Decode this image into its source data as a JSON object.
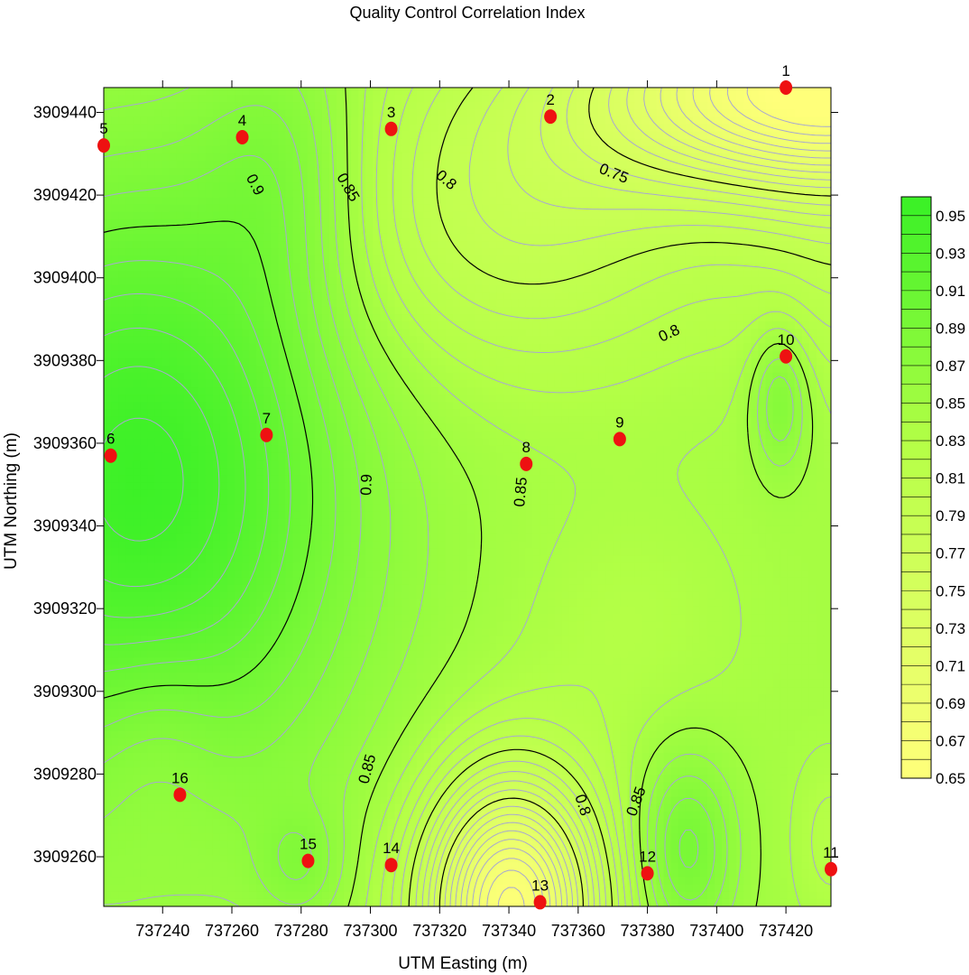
{
  "chart_data": {
    "type": "heatmap",
    "subtype": "contour",
    "title": "Quality Control Correlation Index",
    "xlabel": "UTM Easting (m)",
    "ylabel": "UTM Northing (m)",
    "xlim": [
      737223,
      737433
    ],
    "ylim": [
      3909248,
      3909446
    ],
    "x_ticks": [
      737240,
      737260,
      737280,
      737300,
      737320,
      737340,
      737360,
      737380,
      737400,
      737420
    ],
    "y_ticks": [
      3909260,
      3909280,
      3909300,
      3909320,
      3909340,
      3909360,
      3909380,
      3909400,
      3909420,
      3909440
    ],
    "colorbar": {
      "min": 0.65,
      "max": 0.96,
      "low_color": "#ffff7a",
      "mid_color": "#b4ff46",
      "high_color": "#38f026",
      "tick_labels": [
        "0.95",
        "0.93",
        "0.91",
        "0.89",
        "0.87",
        "0.85",
        "0.83",
        "0.81",
        "0.79",
        "0.77",
        "0.75",
        "0.73",
        "0.71",
        "0.69",
        "0.67",
        "0.65"
      ]
    },
    "major_contours": [
      0.75,
      0.8,
      0.85,
      0.9
    ],
    "contour_labels": [
      "0.9",
      "0.85",
      "0.8",
      "0.75",
      "0.8",
      "0.9",
      "0.85",
      "0.85",
      "0.8",
      "0.85"
    ],
    "points": [
      {
        "label": "1",
        "x": 737420,
        "y": 3909446
      },
      {
        "label": "2",
        "x": 737352,
        "y": 3909439
      },
      {
        "label": "3",
        "x": 737306,
        "y": 3909436
      },
      {
        "label": "4",
        "x": 737263,
        "y": 3909434
      },
      {
        "label": "5",
        "x": 737223,
        "y": 3909432
      },
      {
        "label": "6",
        "x": 737225,
        "y": 3909357
      },
      {
        "label": "7",
        "x": 737270,
        "y": 3909362
      },
      {
        "label": "8",
        "x": 737345,
        "y": 3909355
      },
      {
        "label": "9",
        "x": 737372,
        "y": 3909361
      },
      {
        "label": "10",
        "x": 737420,
        "y": 3909381
      },
      {
        "label": "11",
        "x": 737433,
        "y": 3909257
      },
      {
        "label": "12",
        "x": 737380,
        "y": 3909256
      },
      {
        "label": "13",
        "x": 737349,
        "y": 3909249
      },
      {
        "label": "14",
        "x": 737306,
        "y": 3909258
      },
      {
        "label": "15",
        "x": 737282,
        "y": 3909259
      },
      {
        "label": "16",
        "x": 737245,
        "y": 3909275
      }
    ],
    "colors": {
      "point": "#ee1111",
      "major_line": "#000000",
      "minor_line": "#a8a8d0"
    }
  }
}
